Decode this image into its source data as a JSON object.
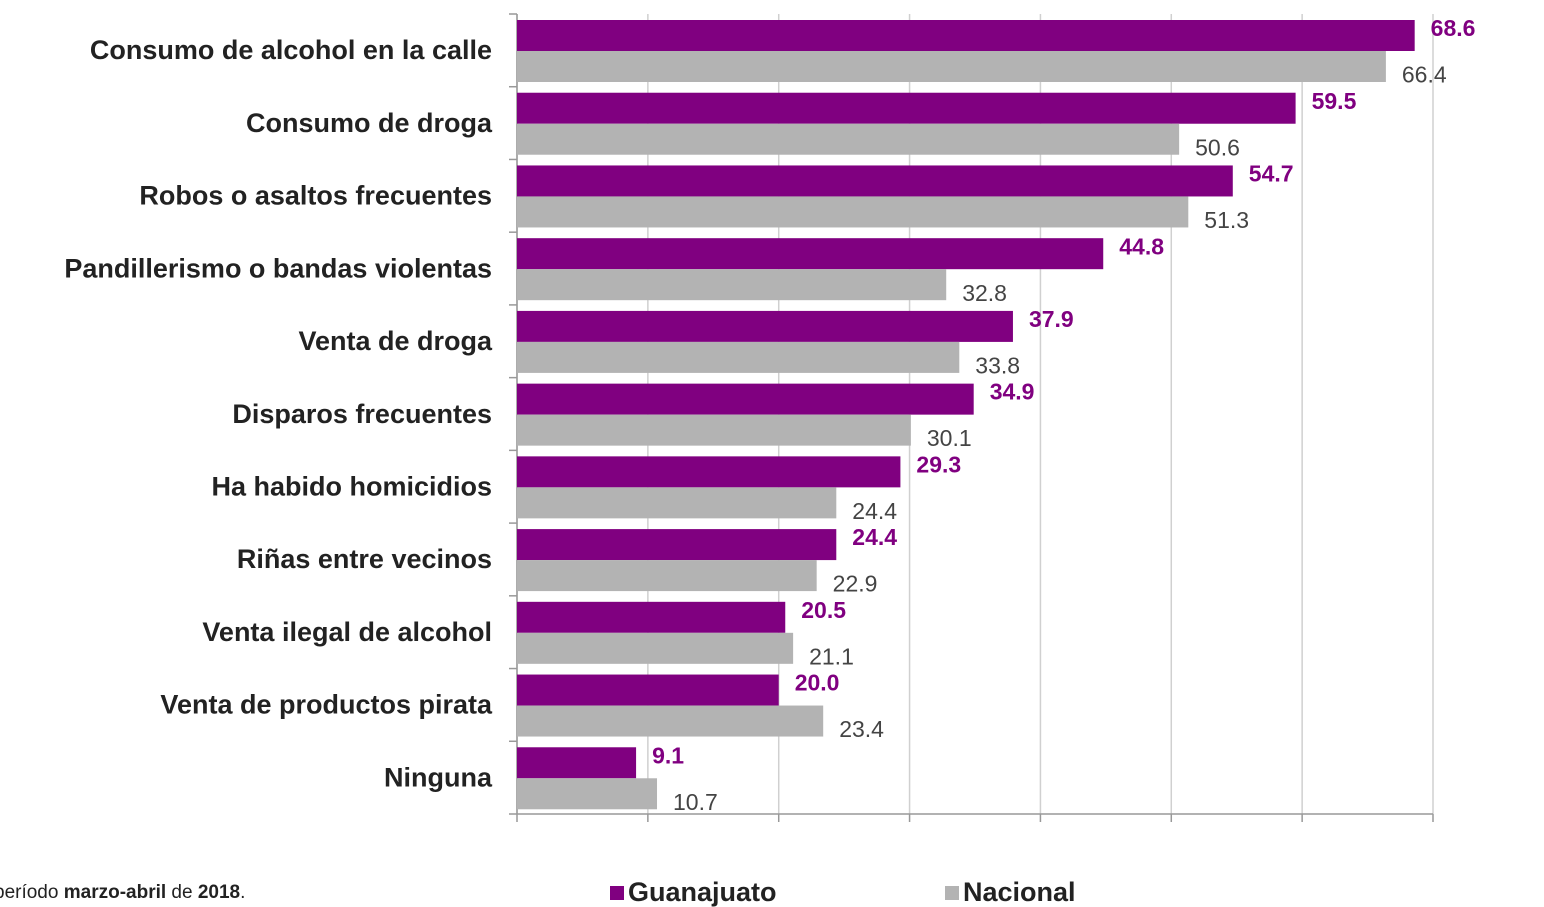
{
  "chart_data": {
    "type": "bar",
    "orientation": "horizontal",
    "categories": [
      "Consumo de alcohol en la calle",
      "Consumo de droga",
      "Robos o asaltos frecuentes",
      "Pandillerismo o bandas violentas",
      "Venta de droga",
      "Disparos frecuentes",
      "Ha habido homicidios",
      "Riñas entre vecinos",
      "Venta ilegal de alcohol",
      "Venta de productos pirata",
      "Ninguna"
    ],
    "series": [
      {
        "name": "Guanajuato",
        "color": "#800080",
        "values": [
          68.6,
          59.5,
          54.7,
          44.8,
          37.9,
          34.9,
          29.3,
          24.4,
          20.5,
          20.0,
          9.1
        ],
        "value_labels": [
          "68.6",
          "59.5",
          "54.7",
          "44.8",
          "37.9",
          "34.9",
          "29.3",
          "24.4",
          "20.5",
          "20.0",
          "9.1"
        ]
      },
      {
        "name": "Nacional",
        "color": "#b3b3b3",
        "values": [
          66.4,
          50.6,
          51.3,
          32.8,
          33.8,
          30.1,
          24.4,
          22.9,
          21.1,
          23.4,
          10.7
        ],
        "value_labels": [
          "66.4",
          "50.6",
          "51.3",
          "32.8",
          "33.8",
          "30.1",
          "24.4",
          "22.9",
          "21.1",
          "23.4",
          "10.7"
        ]
      }
    ],
    "xlim": [
      0,
      70
    ],
    "xticks": [
      0,
      10,
      20,
      30,
      40,
      50,
      60,
      70
    ],
    "grid": true,
    "legend": "bottom",
    "footnote": [
      "período ",
      "marzo-abril",
      " de ",
      "2018",
      "."
    ]
  }
}
